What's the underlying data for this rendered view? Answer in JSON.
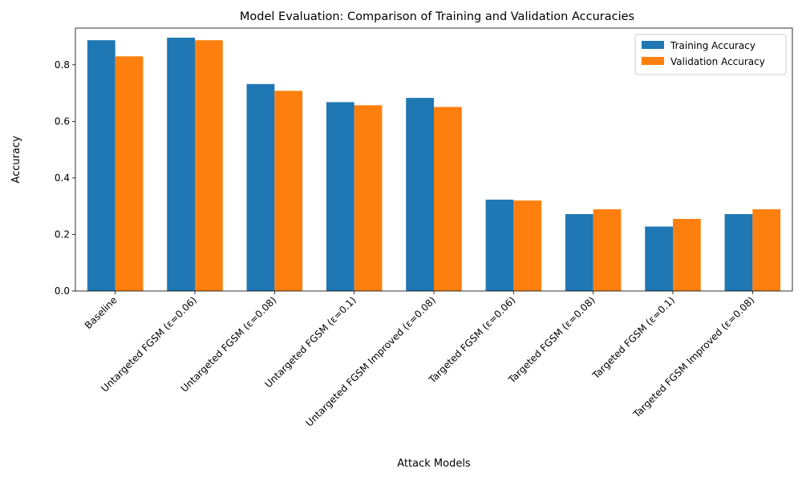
{
  "chart_data": {
    "type": "bar",
    "title": "Model Evaluation: Comparison of Training and Validation Accuracies",
    "xlabel": "Attack Models",
    "ylabel": "Accuracy",
    "ylim": [
      0,
      0.93
    ],
    "yticks": [
      "0.0",
      "0.2",
      "0.4",
      "0.6",
      "0.8"
    ],
    "ytick_values": [
      0,
      0.2,
      0.4,
      0.6,
      0.8
    ],
    "categories": [
      "Baseline",
      "Untargeted FGSM (ε=0.06)",
      "Untargeted FGSM (ε=0.08)",
      "Untargeted FGSM (ε=0.1)",
      "Untargeted FGSM Improved (ε=0.08)",
      "Targeted FGSM (ε=0.06)",
      "Targeted FGSM (ε=0.08)",
      "Targeted FGSM (ε=0.1)",
      "Targeted FGSM Improved (ε=0.08)"
    ],
    "series": [
      {
        "name": "Training Accuracy",
        "color": "#1f77b4",
        "values": [
          0.887,
          0.896,
          0.732,
          0.668,
          0.683,
          0.323,
          0.272,
          0.228,
          0.272
        ]
      },
      {
        "name": "Validation Accuracy",
        "color": "#ff7f0e",
        "values": [
          0.83,
          0.887,
          0.708,
          0.657,
          0.651,
          0.32,
          0.289,
          0.255,
          0.289
        ]
      }
    ],
    "legend_position": "top-right",
    "grid": false
  }
}
